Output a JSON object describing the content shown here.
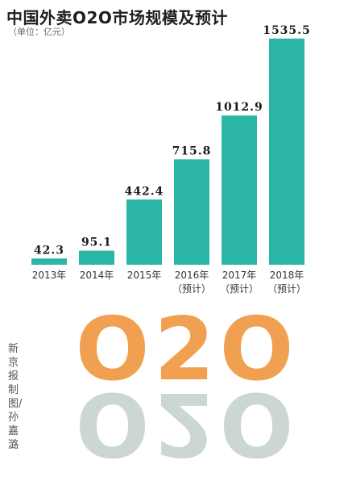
{
  "header": {
    "title": "中国外卖O2O市场规模及预计",
    "unit": "（单位：亿元）"
  },
  "chart_data": {
    "type": "bar",
    "title": "中国外卖O2O市场规模及预计",
    "ylabel": "（单位：亿元）",
    "ylim": [
      0,
      1600
    ],
    "categories": [
      {
        "year": "2013年",
        "note": ""
      },
      {
        "year": "2014年",
        "note": ""
      },
      {
        "year": "2015年",
        "note": ""
      },
      {
        "year": "2016年",
        "note": "（预计）"
      },
      {
        "year": "2017年",
        "note": "（预计）"
      },
      {
        "year": "2018年",
        "note": "（预计）"
      }
    ],
    "values": [
      42.3,
      95.1,
      442.4,
      715.8,
      1012.9,
      1535.5
    ],
    "value_labels": [
      "42.3",
      "95.1",
      "442.4",
      "715.8",
      "1012.9",
      "1535.5"
    ],
    "bar_color": "#2bb5a5",
    "grid": false,
    "legend": "none"
  },
  "logo": {
    "text": "O2O",
    "color": "#f0a050",
    "reflection_color": "#8fa8a0"
  },
  "credit": "新京报制图/孙嘉潞"
}
